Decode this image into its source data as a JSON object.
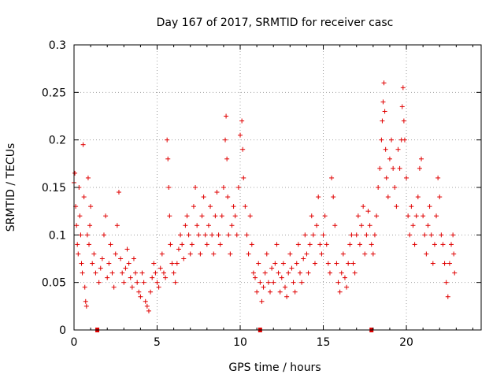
{
  "chart_data": {
    "type": "scatter",
    "title": "Day 167 of 2017, SRMTID for receiver casc",
    "xlabel": "GPS time / hours",
    "ylabel": "SRMTID / TECUs",
    "xlim": [
      0,
      24.5
    ],
    "ylim": [
      0,
      0.3
    ],
    "grid": true,
    "x_ticks": [
      0,
      5,
      10,
      15,
      20
    ],
    "x_tick_labels": [
      "0",
      "5",
      "10",
      "15",
      "20"
    ],
    "y_ticks": [
      0,
      0.05,
      0.1,
      0.15,
      0.2,
      0.25,
      0.3
    ],
    "y_tick_labels": [
      "0",
      "0.05",
      "0.1",
      "0.15",
      "0.2",
      "0.25",
      "0.3"
    ],
    "marker": "+",
    "color": "#e00000",
    "data_gap_markers_x": [
      1.4,
      11.2,
      17.9
    ],
    "series": [
      {
        "name": "SRMTID",
        "points": [
          [
            0.0,
            0.155
          ],
          [
            0.05,
            0.165
          ],
          [
            0.1,
            0.13
          ],
          [
            0.15,
            0.11
          ],
          [
            0.2,
            0.09
          ],
          [
            0.25,
            0.08
          ],
          [
            0.3,
            0.15
          ],
          [
            0.35,
            0.12
          ],
          [
            0.4,
            0.1
          ],
          [
            0.45,
            0.07
          ],
          [
            0.5,
            0.06
          ],
          [
            0.55,
            0.195
          ],
          [
            0.6,
            0.14
          ],
          [
            0.65,
            0.045
          ],
          [
            0.7,
            0.03
          ],
          [
            0.75,
            0.025
          ],
          [
            0.8,
            0.1
          ],
          [
            0.85,
            0.16
          ],
          [
            0.9,
            0.09
          ],
          [
            0.95,
            0.11
          ],
          [
            1.0,
            0.13
          ],
          [
            1.1,
            0.07
          ],
          [
            1.2,
            0.08
          ],
          [
            1.3,
            0.06
          ],
          [
            1.5,
            0.05
          ],
          [
            1.6,
            0.065
          ],
          [
            1.7,
            0.075
          ],
          [
            1.8,
            0.1
          ],
          [
            1.9,
            0.12
          ],
          [
            2.0,
            0.055
          ],
          [
            2.1,
            0.07
          ],
          [
            2.2,
            0.09
          ],
          [
            2.3,
            0.06
          ],
          [
            2.4,
            0.045
          ],
          [
            2.5,
            0.08
          ],
          [
            2.6,
            0.11
          ],
          [
            2.7,
            0.145
          ],
          [
            2.8,
            0.075
          ],
          [
            2.9,
            0.06
          ],
          [
            3.0,
            0.05
          ],
          [
            3.1,
            0.065
          ],
          [
            3.2,
            0.085
          ],
          [
            3.3,
            0.07
          ],
          [
            3.4,
            0.055
          ],
          [
            3.5,
            0.045
          ],
          [
            3.6,
            0.075
          ],
          [
            3.7,
            0.06
          ],
          [
            3.8,
            0.05
          ],
          [
            3.9,
            0.04
          ],
          [
            4.0,
            0.035
          ],
          [
            4.1,
            0.06
          ],
          [
            4.2,
            0.05
          ],
          [
            4.3,
            0.03
          ],
          [
            4.4,
            0.025
          ],
          [
            4.5,
            0.02
          ],
          [
            4.6,
            0.04
          ],
          [
            4.7,
            0.055
          ],
          [
            4.8,
            0.07
          ],
          [
            4.9,
            0.06
          ],
          [
            5.0,
            0.05
          ],
          [
            5.1,
            0.045
          ],
          [
            5.2,
            0.065
          ],
          [
            5.3,
            0.08
          ],
          [
            5.4,
            0.06
          ],
          [
            5.5,
            0.055
          ],
          [
            5.6,
            0.2
          ],
          [
            5.65,
            0.18
          ],
          [
            5.7,
            0.15
          ],
          [
            5.75,
            0.12
          ],
          [
            5.8,
            0.09
          ],
          [
            5.9,
            0.07
          ],
          [
            6.0,
            0.06
          ],
          [
            6.1,
            0.05
          ],
          [
            6.2,
            0.07
          ],
          [
            6.3,
            0.085
          ],
          [
            6.4,
            0.1
          ],
          [
            6.5,
            0.09
          ],
          [
            6.6,
            0.075
          ],
          [
            6.7,
            0.11
          ],
          [
            6.8,
            0.12
          ],
          [
            6.9,
            0.1
          ],
          [
            7.0,
            0.08
          ],
          [
            7.1,
            0.09
          ],
          [
            7.2,
            0.13
          ],
          [
            7.3,
            0.15
          ],
          [
            7.4,
            0.11
          ],
          [
            7.5,
            0.1
          ],
          [
            7.6,
            0.08
          ],
          [
            7.7,
            0.12
          ],
          [
            7.8,
            0.14
          ],
          [
            7.9,
            0.1
          ],
          [
            8.0,
            0.09
          ],
          [
            8.1,
            0.11
          ],
          [
            8.2,
            0.13
          ],
          [
            8.3,
            0.1
          ],
          [
            8.4,
            0.08
          ],
          [
            8.5,
            0.12
          ],
          [
            8.6,
            0.145
          ],
          [
            8.7,
            0.1
          ],
          [
            8.8,
            0.09
          ],
          [
            8.9,
            0.12
          ],
          [
            9.0,
            0.15
          ],
          [
            9.1,
            0.2
          ],
          [
            9.15,
            0.225
          ],
          [
            9.2,
            0.18
          ],
          [
            9.25,
            0.14
          ],
          [
            9.3,
            0.1
          ],
          [
            9.4,
            0.08
          ],
          [
            9.5,
            0.11
          ],
          [
            9.6,
            0.13
          ],
          [
            9.7,
            0.12
          ],
          [
            9.8,
            0.1
          ],
          [
            9.9,
            0.15
          ],
          [
            10.0,
            0.205
          ],
          [
            10.1,
            0.22
          ],
          [
            10.15,
            0.19
          ],
          [
            10.2,
            0.16
          ],
          [
            10.3,
            0.13
          ],
          [
            10.4,
            0.1
          ],
          [
            10.5,
            0.08
          ],
          [
            10.6,
            0.12
          ],
          [
            10.7,
            0.09
          ],
          [
            10.8,
            0.06
          ],
          [
            10.9,
            0.055
          ],
          [
            11.0,
            0.04
          ],
          [
            11.1,
            0.07
          ],
          [
            11.2,
            0.05
          ],
          [
            11.3,
            0.03
          ],
          [
            11.4,
            0.045
          ],
          [
            11.5,
            0.06
          ],
          [
            11.6,
            0.08
          ],
          [
            11.7,
            0.05
          ],
          [
            11.8,
            0.04
          ],
          [
            11.9,
            0.065
          ],
          [
            12.0,
            0.05
          ],
          [
            12.1,
            0.07
          ],
          [
            12.2,
            0.09
          ],
          [
            12.3,
            0.06
          ],
          [
            12.4,
            0.04
          ],
          [
            12.5,
            0.055
          ],
          [
            12.6,
            0.07
          ],
          [
            12.7,
            0.045
          ],
          [
            12.8,
            0.035
          ],
          [
            12.9,
            0.06
          ],
          [
            13.0,
            0.08
          ],
          [
            13.1,
            0.065
          ],
          [
            13.2,
            0.05
          ],
          [
            13.3,
            0.04
          ],
          [
            13.4,
            0.07
          ],
          [
            13.5,
            0.09
          ],
          [
            13.6,
            0.06
          ],
          [
            13.7,
            0.05
          ],
          [
            13.8,
            0.075
          ],
          [
            13.9,
            0.1
          ],
          [
            14.0,
            0.08
          ],
          [
            14.1,
            0.06
          ],
          [
            14.2,
            0.09
          ],
          [
            14.3,
            0.12
          ],
          [
            14.4,
            0.1
          ],
          [
            14.5,
            0.07
          ],
          [
            14.6,
            0.11
          ],
          [
            14.7,
            0.14
          ],
          [
            14.8,
            0.09
          ],
          [
            14.9,
            0.08
          ],
          [
            15.0,
            0.1
          ],
          [
            15.1,
            0.12
          ],
          [
            15.2,
            0.09
          ],
          [
            15.3,
            0.07
          ],
          [
            15.4,
            0.06
          ],
          [
            15.5,
            0.16
          ],
          [
            15.6,
            0.14
          ],
          [
            15.7,
            0.11
          ],
          [
            15.8,
            0.07
          ],
          [
            15.9,
            0.05
          ],
          [
            16.0,
            0.04
          ],
          [
            16.1,
            0.06
          ],
          [
            16.2,
            0.08
          ],
          [
            16.3,
            0.055
          ],
          [
            16.4,
            0.045
          ],
          [
            16.5,
            0.07
          ],
          [
            16.6,
            0.09
          ],
          [
            16.7,
            0.1
          ],
          [
            16.8,
            0.07
          ],
          [
            16.9,
            0.06
          ],
          [
            17.0,
            0.1
          ],
          [
            17.1,
            0.12
          ],
          [
            17.2,
            0.09
          ],
          [
            17.3,
            0.11
          ],
          [
            17.4,
            0.13
          ],
          [
            17.5,
            0.08
          ],
          [
            17.6,
            0.1
          ],
          [
            17.7,
            0.125
          ],
          [
            17.8,
            0.11
          ],
          [
            17.9,
            0.09
          ],
          [
            18.0,
            0.08
          ],
          [
            18.1,
            0.1
          ],
          [
            18.2,
            0.12
          ],
          [
            18.3,
            0.15
          ],
          [
            18.4,
            0.17
          ],
          [
            18.5,
            0.2
          ],
          [
            18.55,
            0.22
          ],
          [
            18.6,
            0.24
          ],
          [
            18.65,
            0.26
          ],
          [
            18.7,
            0.23
          ],
          [
            18.75,
            0.19
          ],
          [
            18.8,
            0.16
          ],
          [
            18.9,
            0.14
          ],
          [
            19.0,
            0.18
          ],
          [
            19.1,
            0.2
          ],
          [
            19.2,
            0.17
          ],
          [
            19.3,
            0.15
          ],
          [
            19.4,
            0.13
          ],
          [
            19.5,
            0.19
          ],
          [
            19.6,
            0.17
          ],
          [
            19.7,
            0.2
          ],
          [
            19.75,
            0.235
          ],
          [
            19.8,
            0.255
          ],
          [
            19.85,
            0.22
          ],
          [
            19.9,
            0.2
          ],
          [
            20.0,
            0.16
          ],
          [
            20.1,
            0.12
          ],
          [
            20.2,
            0.1
          ],
          [
            20.3,
            0.13
          ],
          [
            20.4,
            0.11
          ],
          [
            20.5,
            0.09
          ],
          [
            20.6,
            0.12
          ],
          [
            20.7,
            0.14
          ],
          [
            20.8,
            0.17
          ],
          [
            20.9,
            0.18
          ],
          [
            21.0,
            0.12
          ],
          [
            21.1,
            0.1
          ],
          [
            21.2,
            0.08
          ],
          [
            21.3,
            0.11
          ],
          [
            21.4,
            0.13
          ],
          [
            21.5,
            0.1
          ],
          [
            21.6,
            0.07
          ],
          [
            21.7,
            0.09
          ],
          [
            21.8,
            0.12
          ],
          [
            21.9,
            0.16
          ],
          [
            22.0,
            0.14
          ],
          [
            22.1,
            0.1
          ],
          [
            22.2,
            0.09
          ],
          [
            22.3,
            0.07
          ],
          [
            22.4,
            0.05
          ],
          [
            22.5,
            0.035
          ],
          [
            22.6,
            0.07
          ],
          [
            22.7,
            0.09
          ],
          [
            22.8,
            0.1
          ],
          [
            22.85,
            0.08
          ],
          [
            22.9,
            0.06
          ]
        ]
      }
    ]
  }
}
